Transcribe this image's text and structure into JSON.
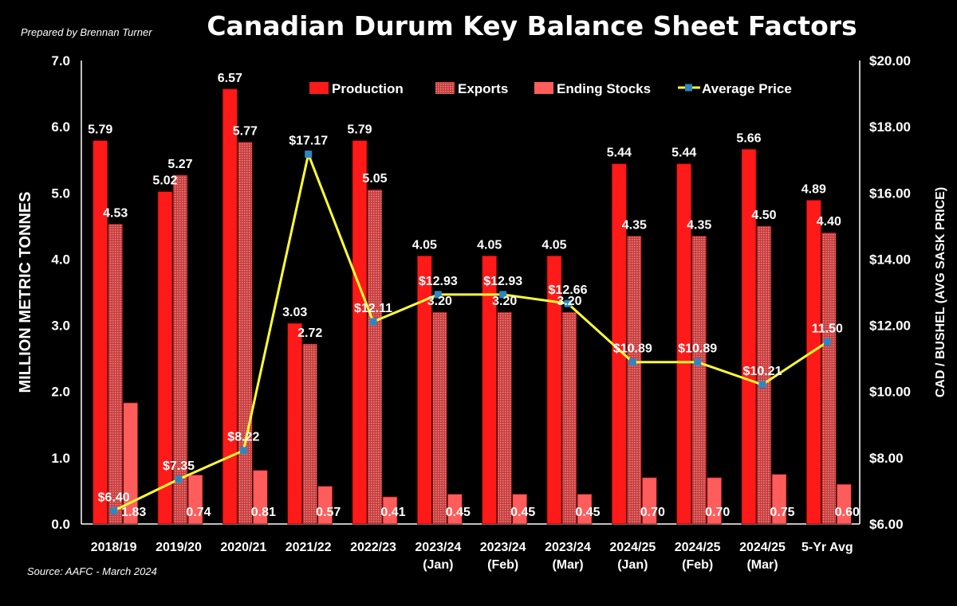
{
  "page": {
    "prepared_by": "Prepared by Brennan Turner",
    "source": "Source: AAFC - March 2024"
  },
  "chart_data": {
    "type": "bar",
    "title": "Canadian Durum Key Balance Sheet Factors",
    "categories": [
      [
        "2018/19"
      ],
      [
        "2019/20"
      ],
      [
        "2020/21"
      ],
      [
        "2021/22"
      ],
      [
        "2022/23"
      ],
      [
        "2023/24",
        "(Jan)"
      ],
      [
        "2023/24",
        "(Feb)"
      ],
      [
        "2023/24",
        "(Mar)"
      ],
      [
        "2024/25",
        "(Jan)"
      ],
      [
        "2024/25",
        "(Feb)"
      ],
      [
        "2024/25",
        "(Mar)"
      ],
      [
        "5-Yr Avg"
      ]
    ],
    "ylabel": "MILLION METRIC TONNES",
    "y2label": "CAD / BUSHEL (AVG SASK PRICE)",
    "ylim": [
      0,
      7
    ],
    "y2lim": [
      6,
      20
    ],
    "yticks": [
      "0.0",
      "1.0",
      "2.0",
      "3.0",
      "4.0",
      "5.0",
      "6.0",
      "7.0"
    ],
    "y2ticks": [
      "$6.00",
      "$8.00",
      "$10.00",
      "$12.00",
      "$14.00",
      "$16.00",
      "$18.00",
      "$20.00"
    ],
    "legend_placement": "top",
    "grid": false,
    "series": [
      {
        "name": "Production",
        "type": "bar",
        "axis": "left",
        "color": "#ff1a1a",
        "values": [
          5.79,
          5.02,
          6.57,
          3.03,
          5.79,
          4.05,
          4.05,
          4.05,
          5.44,
          5.44,
          5.66,
          4.89
        ],
        "labels": [
          "5.79",
          "5.02",
          "6.57",
          "3.03",
          "5.79",
          "4.05",
          "4.05",
          "4.05",
          "5.44",
          "5.44",
          "5.66",
          "4.89"
        ]
      },
      {
        "name": "Exports",
        "type": "bar",
        "axis": "left",
        "color": "#d95a5a",
        "pattern": "dotted",
        "values": [
          4.53,
          5.27,
          5.77,
          2.72,
          5.05,
          3.2,
          3.2,
          3.2,
          4.35,
          4.35,
          4.5,
          4.4
        ],
        "labels": [
          "4.53",
          "5.27",
          "5.77",
          "2.72",
          "5.05",
          "3.20",
          "3.20",
          "3.20",
          "4.35",
          "4.35",
          "4.50",
          "4.40"
        ]
      },
      {
        "name": "Ending Stocks",
        "type": "bar",
        "axis": "left",
        "color": "#ff5c5c",
        "values": [
          1.83,
          0.74,
          0.81,
          0.57,
          0.41,
          0.45,
          0.45,
          0.45,
          0.7,
          0.7,
          0.75,
          0.6
        ],
        "labels": [
          "1.83",
          "0.74",
          "0.81",
          "0.57",
          "0.41",
          "0.45",
          "0.45",
          "0.45",
          "0.70",
          "0.70",
          "0.75",
          "0.60"
        ]
      },
      {
        "name": "Average Price",
        "type": "line",
        "axis": "right",
        "color": "#ffff33",
        "marker_color": "#2e86c1",
        "values": [
          6.4,
          7.35,
          8.22,
          17.17,
          12.11,
          12.93,
          12.93,
          12.66,
          10.89,
          10.89,
          10.21,
          11.5
        ],
        "labels": [
          "$6.40",
          "$7.35",
          "$8.22",
          "$17.17",
          "$12.11",
          "$12.93",
          "$12.93",
          "$12.66",
          "$10.89",
          "$10.89",
          "$10.21",
          "11.50"
        ]
      }
    ]
  }
}
